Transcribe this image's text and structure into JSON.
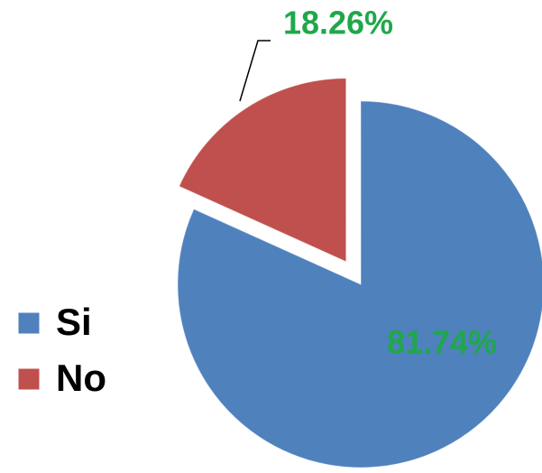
{
  "chart_data": {
    "type": "pie",
    "categories": [
      "Si",
      "No"
    ],
    "values": [
      81.74,
      18.26
    ],
    "value_labels": [
      "81.74%",
      "18.26%"
    ],
    "colors": [
      "#4f81bd",
      "#c0504d"
    ],
    "legend": "left"
  }
}
